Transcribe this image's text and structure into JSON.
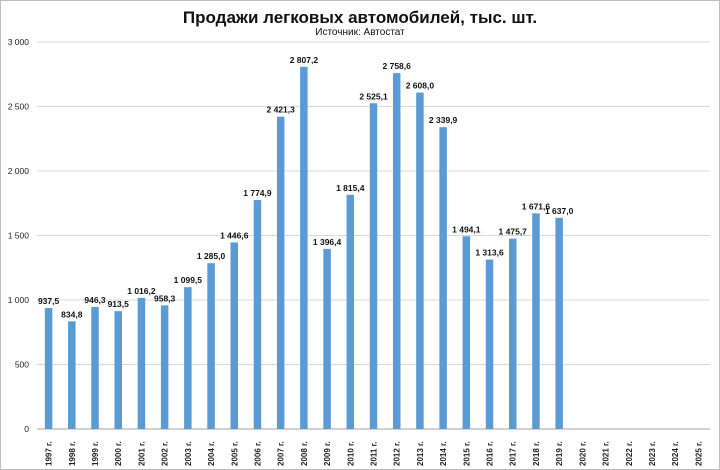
{
  "chart_data": {
    "type": "bar",
    "title": "Продажи легковых автомобилей, тыс. шт.",
    "subtitle": "Источник: Автостат",
    "xlabel": "",
    "ylabel": "",
    "ylim": [
      0,
      3000
    ],
    "yticks": [
      0,
      500,
      1000,
      1500,
      2000,
      2500,
      3000
    ],
    "ytick_labels": [
      "0",
      "500",
      "1 000",
      "1 500",
      "2 000",
      "2 500",
      "3 000"
    ],
    "grid": true,
    "legend": "none",
    "bar_color": "#5b9bd5",
    "categories": [
      "1997 г.",
      "1998 г.",
      "1999 г.",
      "2000 г.",
      "2001 г.",
      "2002 г.",
      "2003 г.",
      "2004 г.",
      "2005 г.",
      "2006 г.",
      "2007 г.",
      "2008 г.",
      "2009 г.",
      "2010 г.",
      "2011 г.",
      "2012 г.",
      "2013 г.",
      "2014 г.",
      "2015 г.",
      "2016 г.",
      "2017 г.",
      "2018 г.",
      "2019 г.",
      "2020 г.",
      "2021 г.",
      "2022 г.",
      "2023 г.",
      "2024 г.",
      "2025 г."
    ],
    "values": [
      937.5,
      834.8,
      946.3,
      913.5,
      1016.2,
      958.3,
      1099.5,
      1285.0,
      1446.6,
      1774.9,
      2421.3,
      2807.2,
      1396.4,
      1815.4,
      2525.1,
      2758.6,
      2608.0,
      2339.9,
      1494.1,
      1313.6,
      1475.7,
      1671.6,
      1637.0,
      null,
      null,
      null,
      null,
      null,
      null
    ],
    "data_labels": [
      "937,5",
      "834,8",
      "946,3",
      "913,5",
      "1 016,2",
      "958,3",
      "1 099,5",
      "1 285,0",
      "1 446,6",
      "1 774,9",
      "2 421,3",
      "2 807,2",
      "1 396,4",
      "1 815,4",
      "2 525,1",
      "2 758,6",
      "2 608,0",
      "2 339,9",
      "1 494,1",
      "1 313,6",
      "1 475,7",
      "1 671,6",
      "1 637,0",
      "",
      "",
      "",
      "",
      "",
      ""
    ]
  }
}
